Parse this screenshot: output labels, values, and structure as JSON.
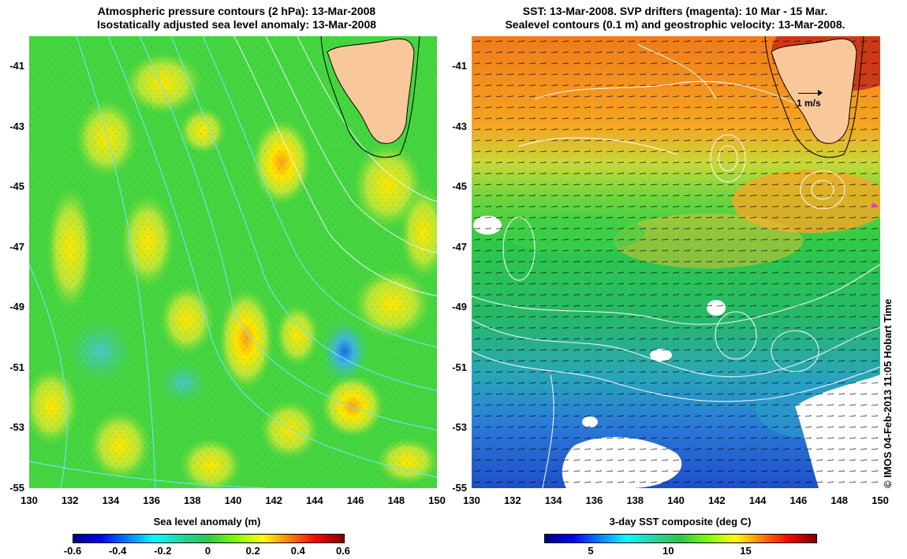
{
  "left_panel": {
    "title_line1": "Atmospheric pressure contours (2 hPa): 13-Mar-2008",
    "title_line2": "Isostatically adjusted sea level anomaly: 13-Mar-2008",
    "colorbar_title": "Sea level anomaly (m)",
    "colorbar_ticks": [
      "-0.6",
      "-0.4",
      "-0.2",
      "0",
      "0.2",
      "0.4",
      "0.6"
    ],
    "colorbar_range": [
      -0.6,
      0.6
    ],
    "colormap": "jet"
  },
  "right_panel": {
    "title_line1": "SST: 13-Mar-2008. SVP drifters (magenta): 10 Mar - 15 Mar.",
    "title_line2": "Sealevel contours (0.1 m) and geostrophic velocity: 13-Mar-2008.",
    "colorbar_title": "3-day SST composite (deg C)",
    "colorbar_ticks": [
      "5",
      "10",
      "15"
    ],
    "colorbar_tick_values": [
      5,
      10,
      15
    ],
    "colorbar_range": [
      2,
      19.5
    ],
    "colormap": "jet",
    "scale_label": "1 m/s"
  },
  "map": {
    "lon_range": [
      130,
      150
    ],
    "lat_range": [
      -55,
      -40
    ],
    "lon_ticks": [
      "130",
      "132",
      "134",
      "136",
      "138",
      "140",
      "142",
      "144",
      "146",
      "148",
      "150"
    ],
    "lat_ticks": [
      "-41",
      "-43",
      "-45",
      "-47",
      "-49",
      "-51",
      "-53",
      "-55"
    ],
    "lat_tick_values": [
      -41,
      -43,
      -45,
      -47,
      -49,
      -51,
      -53,
      -55
    ],
    "land_color": "#f9c89a",
    "contour_color_left": "#6fe3f0",
    "contour_color_right": "#ffffff"
  },
  "copyright": "© IMOS 04-Feb-2013 11:05 Hobart Time"
}
